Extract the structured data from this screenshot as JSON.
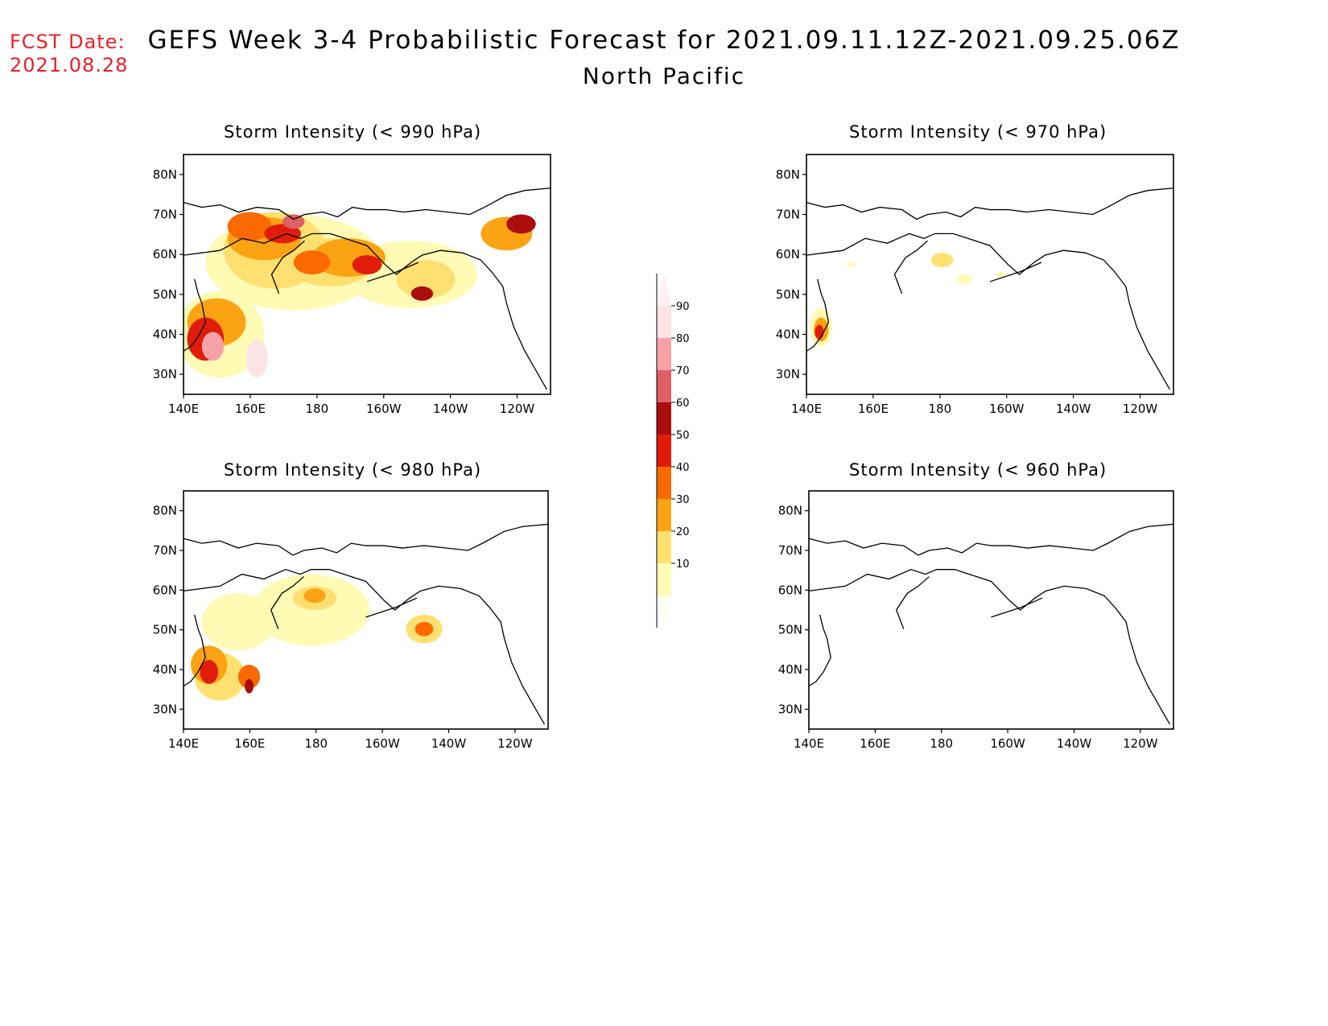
{
  "header": {
    "fcst_label": "FCST Date:",
    "fcst_date": "2021.08.28",
    "title": "GEFS Week 3-4 Probabilistic Forecast for 2021.09.11.12Z-2021.09.25.06Z",
    "subtitle": "North Pacific"
  },
  "axes": {
    "lon_ticks": [
      "140E",
      "160E",
      "180",
      "160W",
      "140W",
      "120W"
    ],
    "lat_ticks": [
      "80N",
      "70N",
      "60N",
      "50N",
      "40N",
      "30N"
    ],
    "lat_values": [
      80,
      70,
      60,
      50,
      40,
      30
    ]
  },
  "panels": [
    {
      "title": "Storm Intensity (< 990 hPa)",
      "threshold_hpa": 990
    },
    {
      "title": "Storm Intensity (< 970 hPa)",
      "threshold_hpa": 970
    },
    {
      "title": "Storm Intensity (< 980 hPa)",
      "threshold_hpa": 980
    },
    {
      "title": "Storm Intensity (< 960 hPa)",
      "threshold_hpa": 960
    }
  ],
  "colorbar": {
    "labels": [
      "90",
      "80",
      "70",
      "60",
      "50",
      "40",
      "30",
      "20",
      "10"
    ],
    "colors": [
      "#fce4e6",
      "#f5a2a6",
      "#dd6066",
      "#a90d0d",
      "#e11c0a",
      "#fa6a00",
      "#fca313",
      "#fde070",
      "#fffab4"
    ]
  }
}
